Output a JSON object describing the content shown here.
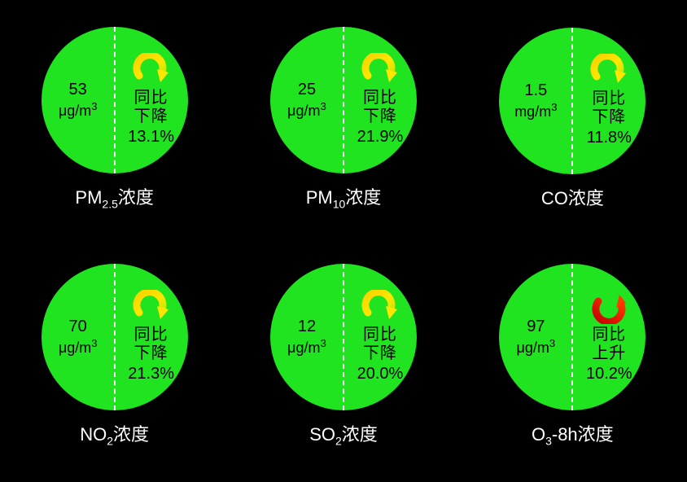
{
  "background_color": "#000000",
  "circle_color": "#1fe41f",
  "divider_color": "#ffffff",
  "text_color": "#000000",
  "caption_color": "#ffffff",
  "arrow_down_gradient": [
    "#f6d200",
    "#ffe600",
    "#c7e600"
  ],
  "arrow_up_gradient": [
    "#c40000",
    "#ff3a00"
  ],
  "items": [
    {
      "value": "53",
      "unit_html": "μg/m<sup>3</sup>",
      "trend_direction": "down",
      "trend_label_line1": "同比",
      "trend_label_line2": "下降",
      "trend_pct": "13.1%",
      "caption_html": "PM<sub>2.5</sub>浓度"
    },
    {
      "value": "25",
      "unit_html": "μg/m<sup>3</sup>",
      "trend_direction": "down",
      "trend_label_line1": "同比",
      "trend_label_line2": "下降",
      "trend_pct": "21.9%",
      "caption_html": "PM<sub>10</sub>浓度"
    },
    {
      "value": "1.5",
      "unit_html": "mg/m<sup>3</sup>",
      "trend_direction": "down",
      "trend_label_line1": "同比",
      "trend_label_line2": "下降",
      "trend_pct": "11.8%",
      "caption_html": "CO浓度"
    },
    {
      "value": "70",
      "unit_html": "μg/m<sup>3</sup>",
      "trend_direction": "down",
      "trend_label_line1": "同比",
      "trend_label_line2": "下降",
      "trend_pct": "21.3%",
      "caption_html": "NO<sub>2</sub>浓度"
    },
    {
      "value": "12",
      "unit_html": "μg/m<sup>3</sup>",
      "trend_direction": "down",
      "trend_label_line1": "同比",
      "trend_label_line2": "下降",
      "trend_pct": "20.0%",
      "caption_html": "SO<sub>2</sub>浓度"
    },
    {
      "value": "97",
      "unit_html": "μg/m<sup>3</sup>",
      "trend_direction": "up",
      "trend_label_line1": "同比",
      "trend_label_line2": "上升",
      "trend_pct": "10.2%",
      "caption_html": "O<sub>3</sub>-8h浓度"
    }
  ]
}
